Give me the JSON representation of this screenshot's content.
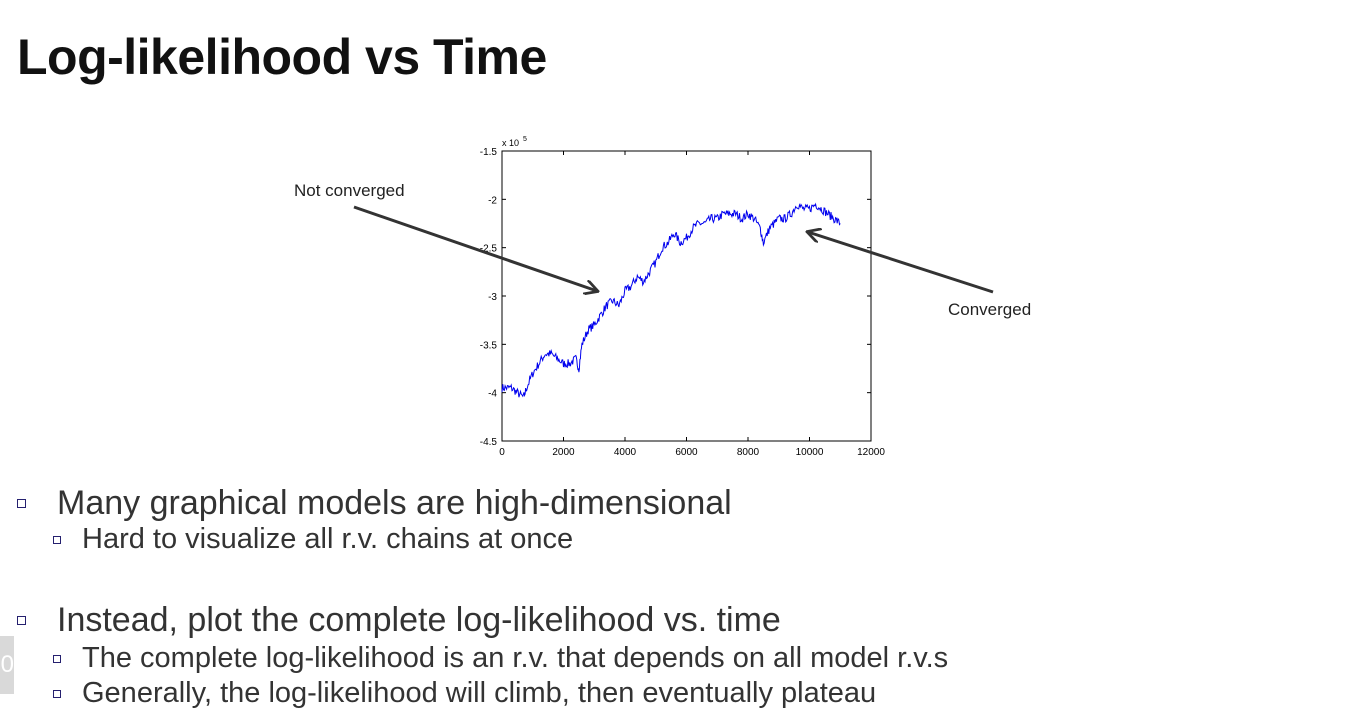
{
  "slide": {
    "title": "Log-likelihood vs Time",
    "page_number": "0"
  },
  "annotations": {
    "left": "Not converged",
    "right": "Converged"
  },
  "bullets": [
    {
      "level": 1,
      "text": "Many graphical models are high-dimensional"
    },
    {
      "level": 2,
      "text": "Hard to visualize all r.v. chains at once"
    },
    {
      "level": 1,
      "text": "Instead, plot the complete log-likelihood vs. time"
    },
    {
      "level": 2,
      "text": "The complete log-likelihood is an r.v. that depends on all model r.v.s"
    },
    {
      "level": 2,
      "text": "Generally, the log-likelihood will climb, then eventually plateau"
    }
  ],
  "colors": {
    "series": "#0000ee",
    "arrow": "#333333",
    "bullet_box": "#25206f"
  },
  "chart_data": {
    "type": "line",
    "title": "",
    "xlabel": "",
    "ylabel": "",
    "y_exponent_label": "x 10",
    "y_exponent": "5",
    "xlim": [
      0,
      12000
    ],
    "ylim": [
      -4.5,
      -1.5
    ],
    "xticks": [
      "0",
      "2000",
      "4000",
      "6000",
      "8000",
      "10000",
      "12000"
    ],
    "yticks": [
      "-1.5",
      "-2",
      "-2.5",
      "-3",
      "-3.5",
      "-4",
      "-4.5"
    ],
    "grid": false,
    "series": [
      {
        "x": [
          0,
          300,
          500,
          700,
          800,
          1000,
          1200,
          1400,
          1600,
          1800,
          2000,
          2200,
          2400,
          2500,
          2600,
          2800,
          3000,
          3200,
          3400,
          3600,
          3800,
          4000,
          4200,
          4400,
          4600,
          4800,
          5000,
          5200,
          5400,
          5600,
          5800,
          6000,
          6200,
          6400,
          6600,
          6800,
          7000,
          7200,
          7400,
          7600,
          7800,
          8000,
          8200,
          8400,
          8500,
          8700,
          9000,
          9200,
          9400,
          9600,
          9800,
          10000,
          10200,
          10400,
          10600,
          10800,
          11000
        ],
        "y": [
          -3.95,
          -3.95,
          -4.0,
          -4.05,
          -3.95,
          -3.8,
          -3.7,
          -3.6,
          -3.6,
          -3.65,
          -3.7,
          -3.7,
          -3.65,
          -3.75,
          -3.5,
          -3.35,
          -3.3,
          -3.2,
          -3.1,
          -3.05,
          -3.1,
          -2.95,
          -2.9,
          -2.8,
          -2.85,
          -2.75,
          -2.65,
          -2.5,
          -2.45,
          -2.35,
          -2.45,
          -2.4,
          -2.3,
          -2.25,
          -2.25,
          -2.2,
          -2.2,
          -2.15,
          -2.15,
          -2.15,
          -2.2,
          -2.15,
          -2.2,
          -2.3,
          -2.45,
          -2.3,
          -2.2,
          -2.2,
          -2.15,
          -2.05,
          -2.1,
          -2.1,
          -2.05,
          -2.1,
          -2.15,
          -2.2,
          -2.25
        ]
      }
    ]
  }
}
